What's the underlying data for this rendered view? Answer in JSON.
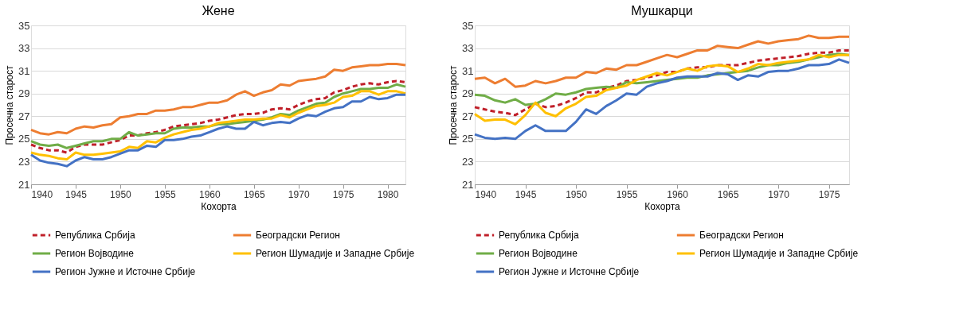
{
  "chart_data": [
    {
      "type": "line",
      "title": "Жене",
      "xlabel": "Кохорта",
      "ylabel": "Просечна старост",
      "xlim": [
        1940,
        1982
      ],
      "xticks": [
        1940,
        1945,
        1950,
        1955,
        1960,
        1965,
        1970,
        1975,
        1980
      ],
      "ylim": [
        21,
        35
      ],
      "yticks": [
        21,
        23,
        25,
        27,
        29,
        31,
        33,
        35
      ],
      "grid": "y",
      "legend": "bottom",
      "marker": "none",
      "x": [
        1940,
        1941,
        1942,
        1943,
        1944,
        1945,
        1946,
        1947,
        1948,
        1949,
        1950,
        1951,
        1952,
        1953,
        1954,
        1955,
        1956,
        1957,
        1958,
        1959,
        1960,
        1961,
        1962,
        1963,
        1964,
        1965,
        1966,
        1967,
        1968,
        1969,
        1970,
        1971,
        1972,
        1973,
        1974,
        1975,
        1976,
        1977,
        1978,
        1979,
        1980,
        1981,
        1982
      ],
      "series": [
        {
          "name": "Република Србија",
          "color": "#c0202a",
          "line_style": "dashed",
          "values": [
            24.5,
            24.2,
            24.0,
            24.0,
            23.8,
            24.3,
            24.5,
            24.5,
            24.5,
            24.7,
            24.9,
            25.3,
            25.3,
            25.5,
            25.6,
            25.8,
            26.1,
            26.2,
            26.3,
            26.4,
            26.6,
            26.7,
            26.9,
            27.1,
            27.2,
            27.2,
            27.3,
            27.6,
            27.7,
            27.6,
            28.0,
            28.3,
            28.5,
            28.6,
            29.1,
            29.3,
            29.6,
            29.8,
            29.9,
            29.8,
            30.0,
            30.1,
            30.0
          ]
        },
        {
          "name": "Београдски Регион",
          "color": "#ed7d31",
          "line_style": "solid",
          "values": [
            25.8,
            25.5,
            25.4,
            25.6,
            25.5,
            25.9,
            26.1,
            26.0,
            26.2,
            26.3,
            26.9,
            27.0,
            27.2,
            27.2,
            27.5,
            27.5,
            27.6,
            27.8,
            27.8,
            28.0,
            28.2,
            28.2,
            28.4,
            28.9,
            29.2,
            28.8,
            29.1,
            29.3,
            29.8,
            29.7,
            30.1,
            30.2,
            30.3,
            30.5,
            31.1,
            31.0,
            31.3,
            31.4,
            31.5,
            31.5,
            31.6,
            31.6,
            31.5
          ]
        },
        {
          "name": "Регион Војводине",
          "color": "#70ad47",
          "line_style": "solid",
          "values": [
            24.8,
            24.5,
            24.4,
            24.5,
            24.2,
            24.4,
            24.6,
            24.8,
            24.8,
            25.0,
            25.0,
            25.6,
            25.3,
            25.4,
            25.5,
            25.5,
            25.9,
            26.0,
            26.0,
            26.1,
            26.1,
            26.3,
            26.3,
            26.4,
            26.5,
            26.6,
            26.7,
            26.9,
            27.2,
            27.1,
            27.5,
            27.8,
            28.1,
            28.2,
            28.7,
            29.0,
            29.2,
            29.4,
            29.4,
            29.5,
            29.5,
            29.8,
            29.6
          ]
        },
        {
          "name": "Регион Шумадије и Западне Србије",
          "color": "#ffc000",
          "line_style": "solid",
          "values": [
            23.8,
            23.6,
            23.5,
            23.3,
            23.2,
            23.8,
            23.6,
            23.6,
            23.7,
            23.8,
            23.9,
            24.3,
            24.2,
            24.8,
            24.7,
            25.1,
            25.4,
            25.6,
            25.8,
            25.9,
            26.1,
            26.4,
            26.5,
            26.6,
            26.7,
            26.7,
            26.8,
            26.8,
            27.1,
            26.9,
            27.3,
            27.6,
            27.9,
            28.0,
            28.2,
            28.7,
            28.8,
            29.2,
            29.2,
            28.9,
            29.2,
            29.2,
            29.0
          ]
        },
        {
          "name": "Регион Јужне и Источне Србије",
          "color": "#4472c4",
          "line_style": "solid",
          "values": [
            23.6,
            23.1,
            22.9,
            22.8,
            22.6,
            23.1,
            23.4,
            23.2,
            23.2,
            23.4,
            23.7,
            24.0,
            24.0,
            24.4,
            24.3,
            24.9,
            24.9,
            25.0,
            25.2,
            25.3,
            25.6,
            25.9,
            26.1,
            25.9,
            25.9,
            26.5,
            26.2,
            26.4,
            26.5,
            26.4,
            26.8,
            27.1,
            27.0,
            27.4,
            27.7,
            27.8,
            28.3,
            28.3,
            28.7,
            28.5,
            28.6,
            28.9,
            28.9
          ]
        }
      ]
    },
    {
      "type": "line",
      "title": "Мушкарци",
      "xlabel": "Кохорта",
      "ylabel": "Просечна старост",
      "xlim": [
        1940,
        1977
      ],
      "xticks": [
        1940,
        1945,
        1950,
        1955,
        1960,
        1965,
        1970,
        1975
      ],
      "ylim": [
        21,
        35
      ],
      "yticks": [
        21,
        23,
        25,
        27,
        29,
        31,
        33,
        35
      ],
      "grid": "y",
      "legend": "bottom",
      "marker": "none",
      "x": [
        1940,
        1941,
        1942,
        1943,
        1944,
        1945,
        1946,
        1947,
        1948,
        1949,
        1950,
        1951,
        1952,
        1953,
        1954,
        1955,
        1956,
        1957,
        1958,
        1959,
        1960,
        1961,
        1962,
        1963,
        1964,
        1965,
        1966,
        1967,
        1968,
        1969,
        1970,
        1971,
        1972,
        1973,
        1974,
        1975,
        1976,
        1977
      ],
      "series": [
        {
          "name": "Република Србија",
          "color": "#c0202a",
          "line_style": "dashed",
          "values": [
            27.8,
            27.6,
            27.4,
            27.3,
            27.1,
            27.6,
            28.1,
            27.8,
            27.9,
            28.2,
            28.6,
            29.1,
            29.1,
            29.5,
            29.7,
            30.1,
            30.2,
            30.4,
            30.6,
            30.9,
            30.9,
            31.2,
            31.3,
            31.3,
            31.5,
            31.5,
            31.5,
            31.7,
            31.9,
            32.0,
            32.1,
            32.2,
            32.3,
            32.5,
            32.6,
            32.6,
            32.8,
            32.8
          ]
        },
        {
          "name": "Београдски Регион",
          "color": "#ed7d31",
          "line_style": "solid",
          "values": [
            30.3,
            30.4,
            29.9,
            30.3,
            29.6,
            29.7,
            30.1,
            29.9,
            30.1,
            30.4,
            30.4,
            30.9,
            30.8,
            31.2,
            31.1,
            31.5,
            31.5,
            31.8,
            32.1,
            32.4,
            32.2,
            32.5,
            32.8,
            32.8,
            33.2,
            33.1,
            33.0,
            33.3,
            33.6,
            33.4,
            33.6,
            33.7,
            33.8,
            34.1,
            33.9,
            33.9,
            34.0,
            34.0
          ]
        },
        {
          "name": "Регион Војводине",
          "color": "#70ad47",
          "line_style": "solid",
          "values": [
            28.9,
            28.8,
            28.4,
            28.2,
            28.5,
            28.0,
            28.1,
            28.5,
            29.0,
            28.9,
            29.1,
            29.4,
            29.5,
            29.6,
            29.5,
            30.0,
            29.9,
            30.0,
            30.1,
            30.2,
            30.3,
            30.4,
            30.4,
            30.6,
            30.7,
            30.8,
            30.9,
            31.0,
            31.3,
            31.5,
            31.5,
            31.7,
            31.8,
            32.0,
            32.2,
            32.4,
            32.5,
            32.4
          ]
        },
        {
          "name": "Регион Шумадије и Западне Србије",
          "color": "#ffc000",
          "line_style": "solid",
          "values": [
            27.2,
            26.6,
            26.7,
            26.7,
            26.3,
            27.1,
            28.2,
            27.3,
            27.0,
            27.7,
            28.1,
            28.7,
            28.8,
            29.3,
            29.5,
            29.7,
            30.2,
            30.5,
            30.8,
            30.6,
            30.9,
            31.2,
            31.0,
            31.4,
            31.5,
            31.4,
            30.9,
            31.2,
            31.6,
            31.5,
            31.7,
            31.8,
            31.9,
            32.0,
            32.4,
            32.2,
            32.4,
            32.4
          ]
        },
        {
          "name": "Регион Јужне и Источне Србије",
          "color": "#4472c4",
          "line_style": "solid",
          "values": [
            25.4,
            25.1,
            25.0,
            25.1,
            25.0,
            25.7,
            26.2,
            25.7,
            25.7,
            25.7,
            26.5,
            27.6,
            27.2,
            27.9,
            28.4,
            29.0,
            28.9,
            29.6,
            29.9,
            30.1,
            30.4,
            30.5,
            30.5,
            30.5,
            30.8,
            30.7,
            30.2,
            30.6,
            30.5,
            30.9,
            31.0,
            31.0,
            31.2,
            31.5,
            31.5,
            31.6,
            32.0,
            31.7
          ]
        }
      ]
    }
  ]
}
